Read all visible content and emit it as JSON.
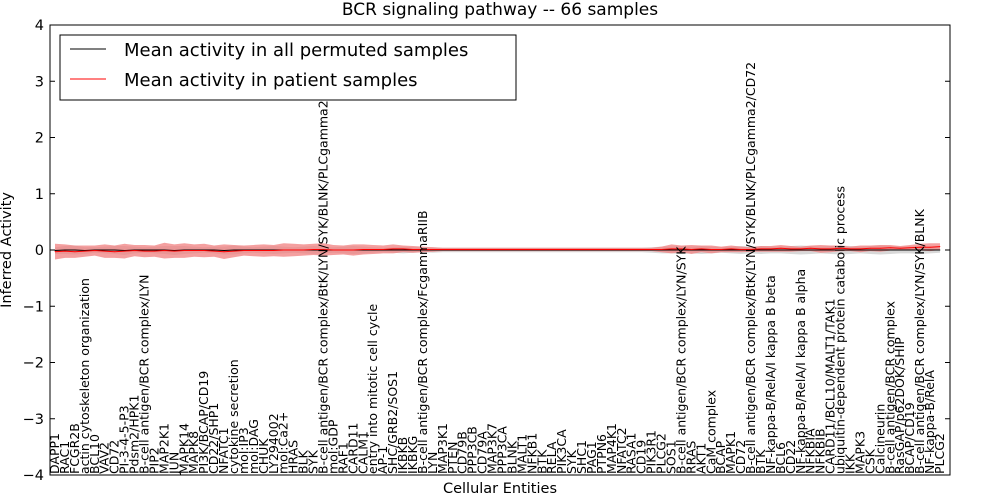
{
  "chart_data": {
    "type": "line",
    "title": "BCR signaling pathway -- 66 samples",
    "xlabel": "Cellular Entities",
    "ylabel": "Inferred Activity",
    "ylim": [
      -4,
      4
    ],
    "yticks": [
      "−4",
      "−3",
      "−2",
      "−1",
      "0",
      "1",
      "2",
      "3",
      "4"
    ],
    "legend": {
      "placement": "top-left"
    },
    "grid": false,
    "categories": [
      "DAPP1",
      "RAC1",
      "FCGR2B",
      "actin cytoskeleton organization",
      "BCL10",
      "VAV2",
      "CD72",
      "PI-3-4-5-P3",
      "Pdsm2/HPK1",
      "B-cell antigen/BCR complex/LYN",
      "PIP2",
      "MAP2K1",
      "JUN",
      "MAPK14",
      "MAPK8",
      "PI3K/BCAP/CD19",
      "CD22/SHP1",
      "NFATC1",
      "cytokine secretion",
      "mol:IP3",
      "mol:DAG",
      "CHUK",
      "LY294002",
      "mol:Ca2+",
      "HRAS",
      "BLK",
      "SYK",
      "B-cell antigen/BCR complex/BtK/LYN/SYK/BLNK/PLCgamma2",
      "mol:GDP",
      "RAF1",
      "CARD11",
      "CALM1",
      "entry into mitotic cell cycle",
      "AP-1",
      "SHC/GRB2/SOS1",
      "IKBKB",
      "IKBKG",
      "B-cell antigen/BCR complex/FcgammaRIIB",
      "LYN",
      "MAP3K1",
      "PTEN",
      "CD79B",
      "PPP3CB",
      "CD79A",
      "MAP3K7",
      "PPP3CA",
      "BLNK",
      "MALT1",
      "NFKB1",
      "BTK",
      "RELA",
      "PIK3CA",
      "SYK",
      "SHC1",
      "PAG1",
      "PTPN6",
      "MAP4K1",
      "NFATC2",
      "RASA1",
      "CD19",
      "PIK3R1",
      "PLCG2",
      "SOS1",
      "B-cell antigen/BCR complex/LYN/SYK",
      "RRAS",
      "AKT1",
      "CaM complex",
      "BCAP",
      "MAPK1",
      "CD72",
      "B-cell antigen/BCR complex/BtK/LYN/SYK/BLNK/PLCgamma2/CD72",
      "BTK",
      "NF-kappa-B/RelA/I kappa B beta",
      "BCL6",
      "CD22",
      "NF-kappa-B/RelA/I kappa B alpha",
      "NFKBIA",
      "NFKBIB",
      "CARD11/BCL10/MALT1/TAK1",
      "ubiquitin-dependent protein catabolic process",
      "IKK",
      "MAPK3",
      "CSK",
      "Calcineurin",
      "B-cell antigen/BCR complex",
      "RasGAP/p62DOK/SHIP",
      "BCAP/CD19",
      "B-cell antigen/BCR complex/LYN/SYK/BLNK",
      "NF-kappa-B/RelA",
      "PLCG2"
    ],
    "series": [
      {
        "name": "Mean activity in all permuted samples",
        "color": "#000000",
        "band_color": "#c8c8c8",
        "values": [
          -0.01,
          0.0,
          0.0,
          -0.01,
          0.0,
          0.0,
          0.0,
          -0.01,
          0.0,
          0.0,
          0.0,
          0.0,
          -0.01,
          0.0,
          0.0,
          0.0,
          0.0,
          -0.01,
          0.0,
          0.0,
          0.0,
          0.0,
          0.0,
          0.0,
          0.0,
          0.0,
          0.0,
          0.0,
          0.0,
          0.0,
          0.0,
          0.0,
          0.0,
          0.0,
          0.0,
          0.0,
          0.0,
          0.0,
          0.0,
          0.0,
          0.0,
          0.0,
          0.0,
          0.0,
          0.0,
          0.0,
          0.0,
          0.0,
          0.0,
          0.0,
          0.0,
          0.0,
          0.0,
          0.0,
          0.0,
          0.0,
          0.0,
          0.0,
          0.0,
          0.0,
          0.0,
          0.0,
          0.0,
          0.0,
          0.0,
          0.0,
          0.0,
          0.0,
          0.0,
          0.0,
          0.0,
          0.0,
          0.0,
          0.0,
          0.0,
          0.0,
          0.0,
          0.0,
          0.0,
          0.0,
          0.0,
          0.0,
          0.0,
          0.0,
          0.0,
          0.0,
          0.0,
          0.0,
          0.0,
          0.0
        ],
        "spread": [
          0.06,
          0.07,
          0.08,
          0.06,
          0.05,
          0.06,
          0.07,
          0.08,
          0.06,
          0.05,
          0.06,
          0.07,
          0.08,
          0.07,
          0.06,
          0.05,
          0.06,
          0.07,
          0.08,
          0.06,
          0.05,
          0.06,
          0.07,
          0.06,
          0.05,
          0.06,
          0.07,
          0.06,
          0.05,
          0.06,
          0.07,
          0.06,
          0.05,
          0.04,
          0.05,
          0.06,
          0.05,
          0.04,
          0.05,
          0.04,
          0.04,
          0.04,
          0.04,
          0.04,
          0.04,
          0.04,
          0.04,
          0.04,
          0.04,
          0.04,
          0.04,
          0.04,
          0.04,
          0.04,
          0.04,
          0.04,
          0.04,
          0.04,
          0.04,
          0.04,
          0.05,
          0.06,
          0.06,
          0.07,
          0.06,
          0.07,
          0.06,
          0.05,
          0.06,
          0.07,
          0.06,
          0.07,
          0.06,
          0.06,
          0.07,
          0.08,
          0.07,
          0.06,
          0.07,
          0.08,
          0.07,
          0.06,
          0.07,
          0.08,
          0.07,
          0.06,
          0.06,
          0.07,
          0.06,
          0.05
        ]
      },
      {
        "name": "Mean activity in patient samples",
        "color": "#ff0000",
        "band_color": "#f08080",
        "values": [
          -0.03,
          -0.02,
          -0.03,
          -0.02,
          -0.01,
          -0.02,
          -0.03,
          -0.02,
          -0.01,
          -0.02,
          -0.02,
          -0.01,
          -0.02,
          -0.01,
          -0.01,
          -0.01,
          -0.02,
          -0.03,
          -0.02,
          -0.01,
          -0.01,
          -0.01,
          -0.01,
          0.0,
          0.0,
          0.0,
          0.01,
          0.01,
          0.0,
          0.0,
          0.0,
          0.01,
          0.01,
          0.01,
          0.02,
          0.02,
          0.01,
          0.01,
          0.01,
          0.01,
          0.01,
          0.01,
          0.01,
          0.01,
          0.01,
          0.01,
          0.01,
          0.01,
          0.01,
          0.01,
          0.01,
          0.01,
          0.01,
          0.01,
          0.01,
          0.01,
          0.01,
          0.01,
          0.01,
          0.01,
          0.01,
          0.01,
          0.02,
          0.02,
          0.01,
          0.02,
          0.01,
          0.01,
          0.02,
          0.01,
          0.01,
          0.02,
          0.02,
          0.03,
          0.02,
          0.02,
          0.03,
          0.02,
          0.02,
          0.03,
          0.02,
          0.02,
          0.03,
          0.03,
          0.04,
          0.03,
          0.04,
          0.05,
          0.05,
          0.06
        ],
        "spread": [
          0.14,
          0.12,
          0.11,
          0.1,
          0.09,
          0.12,
          0.11,
          0.13,
          0.1,
          0.11,
          0.1,
          0.14,
          0.12,
          0.13,
          0.11,
          0.12,
          0.1,
          0.13,
          0.11,
          0.09,
          0.1,
          0.11,
          0.1,
          0.12,
          0.11,
          0.1,
          0.1,
          0.11,
          0.09,
          0.08,
          0.1,
          0.09,
          0.08,
          0.07,
          0.08,
          0.06,
          0.06,
          0.05,
          0.04,
          0.03,
          0.03,
          0.03,
          0.03,
          0.03,
          0.03,
          0.03,
          0.03,
          0.03,
          0.03,
          0.03,
          0.03,
          0.03,
          0.03,
          0.03,
          0.03,
          0.03,
          0.03,
          0.03,
          0.03,
          0.03,
          0.03,
          0.05,
          0.08,
          0.06,
          0.08,
          0.06,
          0.07,
          0.05,
          0.06,
          0.05,
          0.04,
          0.05,
          0.05,
          0.06,
          0.05,
          0.04,
          0.05,
          0.07,
          0.06,
          0.05,
          0.04,
          0.06,
          0.05,
          0.06,
          0.05,
          0.04,
          0.05,
          0.06,
          0.07,
          0.06
        ]
      }
    ]
  }
}
